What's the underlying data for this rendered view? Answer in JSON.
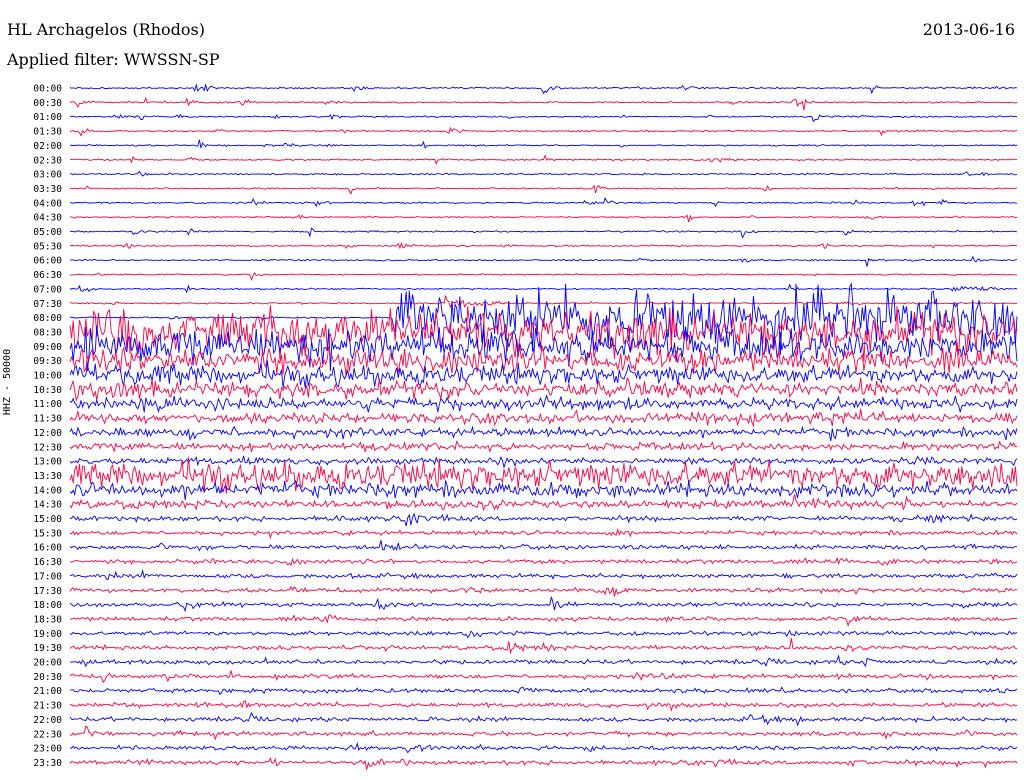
{
  "header": {
    "station": "HL Archagelos (Rhodos)",
    "date": "2013-06-16",
    "filter": "Applied filter: WWSSN-SP"
  },
  "chart_data": {
    "type": "line",
    "ylabel": "HHZ - 50000",
    "row_labels": [
      "00:00",
      "00:30",
      "01:00",
      "01:30",
      "02:00",
      "02:30",
      "03:00",
      "03:30",
      "04:00",
      "04:30",
      "05:00",
      "05:30",
      "06:00",
      "06:30",
      "07:00",
      "07:30",
      "08:00",
      "08:30",
      "09:00",
      "09:30",
      "10:00",
      "10:30",
      "11:00",
      "11:30",
      "12:00",
      "12:30",
      "13:00",
      "13:30",
      "14:00",
      "14:30",
      "15:00",
      "15:30",
      "16:00",
      "16:30",
      "17:00",
      "17:30",
      "18:00",
      "18:30",
      "19:00",
      "19:30",
      "20:00",
      "20:30",
      "21:00",
      "21:30",
      "22:00",
      "22:30",
      "23:00",
      "23:30"
    ],
    "trace_colors": [
      "#0000ff",
      "#ff0040"
    ],
    "major_event": {
      "start_row": "08:00",
      "time_fraction": 0.34
    }
  }
}
